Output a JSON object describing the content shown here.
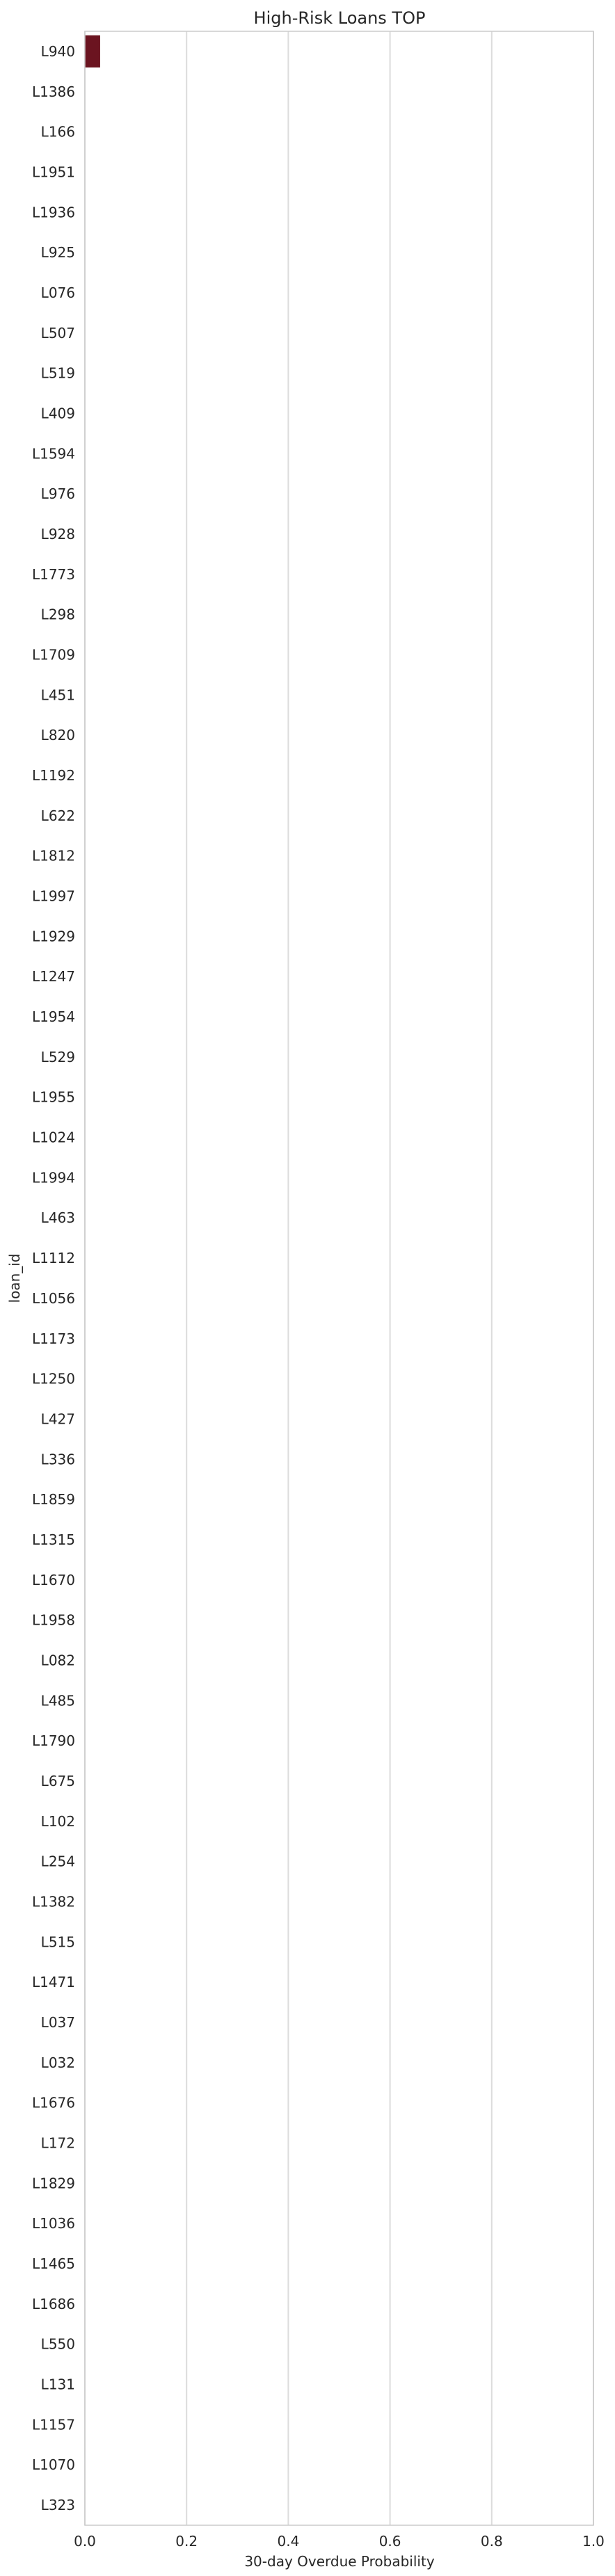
{
  "chart_data": {
    "type": "bar",
    "orientation": "horizontal",
    "title": "High-Risk Loans TOP",
    "xlabel": "30-day Overdue Probability",
    "ylabel": "loan_id",
    "xlim": [
      0.0,
      1.0
    ],
    "xticks": [
      "0.0",
      "0.2",
      "0.4",
      "0.6",
      "0.8",
      "1.0"
    ],
    "grid": true,
    "bar_color": "#6b1420",
    "categories": [
      "L940",
      "L1386",
      "L166",
      "L1951",
      "L1936",
      "L925",
      "L076",
      "L507",
      "L519",
      "L409",
      "L1594",
      "L976",
      "L928",
      "L1773",
      "L298",
      "L1709",
      "L451",
      "L820",
      "L1192",
      "L622",
      "L1812",
      "L1997",
      "L1929",
      "L1247",
      "L1954",
      "L529",
      "L1955",
      "L1024",
      "L1994",
      "L463",
      "L1112",
      "L1056",
      "L1173",
      "L1250",
      "L427",
      "L336",
      "L1859",
      "L1315",
      "L1670",
      "L1958",
      "L082",
      "L485",
      "L1790",
      "L675",
      "L102",
      "L254",
      "L1382",
      "L515",
      "L1471",
      "L037",
      "L032",
      "L1676",
      "L172",
      "L1829",
      "L1036",
      "L1465",
      "L1686",
      "L550",
      "L131",
      "L1157",
      "L1070",
      "L323"
    ],
    "values": [
      0.03,
      0,
      0,
      0,
      0,
      0,
      0,
      0,
      0,
      0,
      0,
      0,
      0,
      0,
      0,
      0,
      0,
      0,
      0,
      0,
      0,
      0,
      0,
      0,
      0,
      0,
      0,
      0,
      0,
      0,
      0,
      0,
      0,
      0,
      0,
      0,
      0,
      0,
      0,
      0,
      0,
      0,
      0,
      0,
      0,
      0,
      0,
      0,
      0,
      0,
      0,
      0,
      0,
      0,
      0,
      0,
      0,
      0,
      0,
      0,
      0,
      0
    ]
  }
}
